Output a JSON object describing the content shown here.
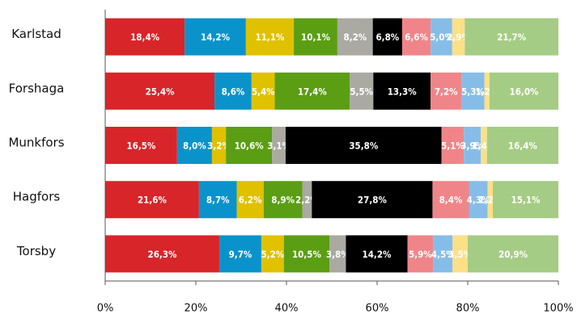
{
  "chart_data": {
    "type": "stacked_percent_barh",
    "categories": [
      "Karlstad",
      "Forshaga",
      "Munkfors",
      "Hagfors",
      "Torsby"
    ],
    "series": [
      {
        "color": "#d7252a",
        "values": [
          18.4,
          25.4,
          16.5,
          21.6,
          26.3
        ],
        "value_labels": [
          "18,4%",
          "25,4%",
          "16,5%",
          "21,6%",
          "26,3%"
        ]
      },
      {
        "color": "#0a93cb",
        "values": [
          14.2,
          8.6,
          8.0,
          8.7,
          9.7
        ],
        "value_labels": [
          "14,2%",
          "8,6%",
          "8,0%",
          "8,7%",
          "9,7%"
        ]
      },
      {
        "color": "#e0c100",
        "values": [
          11.1,
          5.4,
          3.2,
          6.2,
          5.2
        ],
        "value_labels": [
          "11,1%",
          "5,4%",
          "3,2%",
          "6,2%",
          "5,2%"
        ]
      },
      {
        "color": "#5b9e13",
        "values": [
          10.1,
          17.4,
          10.6,
          8.9,
          10.5
        ],
        "value_labels": [
          "10,1%",
          "17,4%",
          "10,6%",
          "8,9%",
          "10,5%"
        ]
      },
      {
        "color": "#aaa9a2",
        "values": [
          8.2,
          5.5,
          3.1,
          2.2,
          3.8
        ],
        "value_labels": [
          "8,2%",
          "5,5%",
          "3,1%",
          "2,2%",
          "3,8%"
        ]
      },
      {
        "color": "#000000",
        "values": [
          6.8,
          13.3,
          35.8,
          27.8,
          14.2
        ],
        "value_labels": [
          "6,8%",
          "13,3%",
          "35,8%",
          "27,8%",
          "14,2%"
        ]
      },
      {
        "color": "#f08589",
        "values": [
          6.6,
          7.2,
          5.1,
          8.4,
          5.9
        ],
        "value_labels": [
          "6,6%",
          "7,2%",
          "5,1%",
          "8,4%",
          "5,9%"
        ]
      },
      {
        "color": "#86bde8",
        "values": [
          5.0,
          5.3,
          3.9,
          4.3,
          4.5
        ],
        "value_labels": [
          "5,0%",
          "5,3%",
          "3,9%",
          "4,3%",
          "4,5%"
        ]
      },
      {
        "color": "#fbe088",
        "values": [
          2.9,
          1.2,
          1.4,
          1.2,
          3.5
        ],
        "value_labels": [
          "2,9%",
          "1,2%",
          "1,4%",
          "1,2%",
          "3,5%"
        ]
      },
      {
        "color": "#a5cc84",
        "values": [
          21.7,
          16.0,
          16.4,
          15.1,
          20.9
        ],
        "value_labels": [
          "21,7%",
          "16,0%",
          "16,4%",
          "15,1%",
          "20,9%"
        ]
      }
    ],
    "xlim": [
      0,
      100
    ],
    "xticks": [
      {
        "value": 0,
        "label": "0%"
      },
      {
        "value": 20,
        "label": "20%"
      },
      {
        "value": 40,
        "label": "40%"
      },
      {
        "value": 60,
        "label": "60%"
      },
      {
        "value": 80,
        "label": "80%"
      },
      {
        "value": 100,
        "label": "100%"
      }
    ]
  }
}
